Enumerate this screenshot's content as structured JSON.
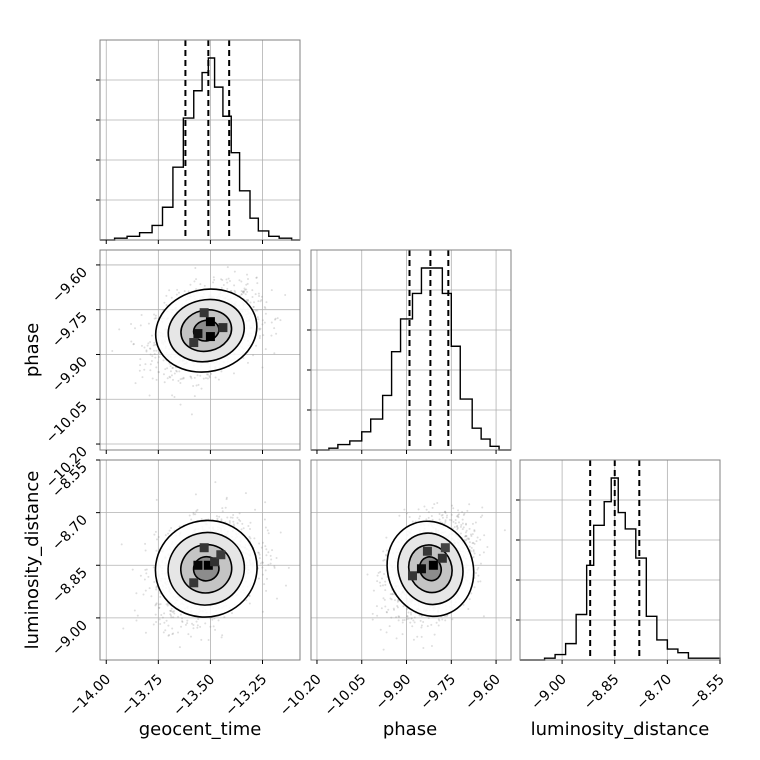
{
  "chart_data": {
    "type": "corner",
    "parameters": [
      "geocent_time",
      "phase",
      "luminosity_distance"
    ],
    "quantiles": [
      0.16,
      0.5,
      0.84
    ],
    "grid": true,
    "colors": {
      "line": "#000000",
      "grid": "#b0b0b0",
      "scatter": "#888888"
    },
    "panels": {
      "geocent_time": {
        "range": [
          -14.03,
          -13.07
        ],
        "ticks": [
          -14.0,
          -13.75,
          -13.5,
          -13.25
        ],
        "tick_labels": [
          "−14.00",
          "−13.75",
          "−13.50",
          "−13.25"
        ],
        "quantile_values": [
          -13.62,
          -13.51,
          -13.41
        ],
        "histogram": [
          {
            "x0": -14.03,
            "x1": -13.96,
            "count": 0
          },
          {
            "x0": -13.96,
            "x1": -13.9,
            "count": 1
          },
          {
            "x0": -13.9,
            "x1": -13.84,
            "count": 2
          },
          {
            "x0": -13.84,
            "x1": -13.78,
            "count": 4
          },
          {
            "x0": -13.78,
            "x1": -13.73,
            "count": 8
          },
          {
            "x0": -13.73,
            "x1": -13.68,
            "count": 18
          },
          {
            "x0": -13.68,
            "x1": -13.63,
            "count": 40
          },
          {
            "x0": -13.63,
            "x1": -13.58,
            "count": 67
          },
          {
            "x0": -13.58,
            "x1": -13.54,
            "count": 82
          },
          {
            "x0": -13.54,
            "x1": -13.51,
            "count": 92
          },
          {
            "x0": -13.51,
            "x1": -13.48,
            "count": 100
          },
          {
            "x0": -13.48,
            "x1": -13.44,
            "count": 84
          },
          {
            "x0": -13.44,
            "x1": -13.4,
            "count": 68
          },
          {
            "x0": -13.4,
            "x1": -13.36,
            "count": 48
          },
          {
            "x0": -13.36,
            "x1": -13.31,
            "count": 27
          },
          {
            "x0": -13.31,
            "x1": -13.27,
            "count": 12
          },
          {
            "x0": -13.27,
            "x1": -13.22,
            "count": 5
          },
          {
            "x0": -13.22,
            "x1": -13.17,
            "count": 2
          },
          {
            "x0": -13.17,
            "x1": -13.11,
            "count": 1
          },
          {
            "x0": -13.11,
            "x1": -13.07,
            "count": 0
          }
        ]
      },
      "phase": {
        "range": [
          -10.22,
          -9.55
        ],
        "ticks": [
          -10.2,
          -10.05,
          -9.9,
          -9.75,
          -9.6
        ],
        "tick_labels": [
          "−10.20",
          "−10.05",
          "−9.90",
          "−9.75",
          "−9.60"
        ],
        "quantile_values": [
          -9.89,
          -9.82,
          -9.76
        ],
        "histogram": [
          {
            "x0": -10.22,
            "x1": -10.16,
            "count": 0
          },
          {
            "x0": -10.16,
            "x1": -10.13,
            "count": 1
          },
          {
            "x0": -10.13,
            "x1": -10.09,
            "count": 3
          },
          {
            "x0": -10.09,
            "x1": -10.05,
            "count": 5
          },
          {
            "x0": -10.05,
            "x1": -10.02,
            "count": 10
          },
          {
            "x0": -10.02,
            "x1": -9.98,
            "count": 17
          },
          {
            "x0": -9.98,
            "x1": -9.95,
            "count": 30
          },
          {
            "x0": -9.95,
            "x1": -9.92,
            "count": 54
          },
          {
            "x0": -9.92,
            "x1": -9.88,
            "count": 72
          },
          {
            "x0": -9.88,
            "x1": -9.85,
            "count": 86
          },
          {
            "x0": -9.85,
            "x1": -9.82,
            "count": 100
          },
          {
            "x0": -9.82,
            "x1": -9.78,
            "count": 100
          },
          {
            "x0": -9.78,
            "x1": -9.75,
            "count": 86
          },
          {
            "x0": -9.75,
            "x1": -9.72,
            "count": 57
          },
          {
            "x0": -9.72,
            "x1": -9.68,
            "count": 28
          },
          {
            "x0": -9.68,
            "x1": -9.65,
            "count": 12
          },
          {
            "x0": -9.65,
            "x1": -9.62,
            "count": 6
          },
          {
            "x0": -9.62,
            "x1": -9.59,
            "count": 2
          },
          {
            "x0": -9.59,
            "x1": -9.55,
            "count": 0
          }
        ]
      },
      "luminosity_distance": {
        "range": [
          -9.12,
          -8.55
        ],
        "ticks": [
          -9.0,
          -8.85,
          -8.7,
          -8.55
        ],
        "tick_labels": [
          "−9.00",
          "−8.85",
          "−8.70",
          "−8.55"
        ],
        "quantile_values": [
          -8.92,
          -8.85,
          -8.78
        ],
        "histogram": [
          {
            "x0": -9.12,
            "x1": -9.05,
            "count": 0
          },
          {
            "x0": -9.05,
            "x1": -9.02,
            "count": 1
          },
          {
            "x0": -9.02,
            "x1": -8.99,
            "count": 3
          },
          {
            "x0": -8.99,
            "x1": -8.96,
            "count": 9
          },
          {
            "x0": -8.96,
            "x1": -8.93,
            "count": 25
          },
          {
            "x0": -8.93,
            "x1": -8.91,
            "count": 52
          },
          {
            "x0": -8.91,
            "x1": -8.88,
            "count": 74
          },
          {
            "x0": -8.88,
            "x1": -8.86,
            "count": 87
          },
          {
            "x0": -8.86,
            "x1": -8.84,
            "count": 100
          },
          {
            "x0": -8.84,
            "x1": -8.82,
            "count": 81
          },
          {
            "x0": -8.82,
            "x1": -8.79,
            "count": 72
          },
          {
            "x0": -8.79,
            "x1": -8.76,
            "count": 56
          },
          {
            "x0": -8.76,
            "x1": -8.73,
            "count": 24
          },
          {
            "x0": -8.73,
            "x1": -8.7,
            "count": 11
          },
          {
            "x0": -8.7,
            "x1": -8.67,
            "count": 6
          },
          {
            "x0": -8.67,
            "x1": -8.64,
            "count": 4
          },
          {
            "x0": -8.64,
            "x1": -8.55,
            "count": 1
          }
        ]
      }
    },
    "pairs": [
      {
        "x": "geocent_time",
        "y": "phase",
        "mean": [
          -13.52,
          -9.82
        ],
        "std": [
          0.12,
          0.07
        ],
        "corr": 0.3,
        "peak_bins": [
          [
            -13.5,
            -9.79,
            1.0
          ],
          [
            -13.5,
            -9.84,
            1.0
          ],
          [
            -13.56,
            -9.83,
            0.85
          ],
          [
            -13.44,
            -9.81,
            0.6
          ],
          [
            -13.53,
            -9.76,
            0.55
          ],
          [
            -13.58,
            -9.86,
            0.55
          ]
        ]
      },
      {
        "x": "geocent_time",
        "y": "luminosity_distance",
        "mean": [
          -13.52,
          -8.86
        ],
        "std": [
          0.12,
          0.07
        ],
        "corr": 0.3,
        "peak_bins": [
          [
            -13.51,
            -8.85,
            1.0
          ],
          [
            -13.56,
            -8.85,
            0.95
          ],
          [
            -13.48,
            -8.84,
            0.6
          ],
          [
            -13.53,
            -8.8,
            0.55
          ],
          [
            -13.58,
            -8.9,
            0.55
          ],
          [
            -13.45,
            -8.82,
            0.5
          ]
        ]
      },
      {
        "x": "phase",
        "y": "luminosity_distance",
        "mean": [
          -9.82,
          -8.86
        ],
        "std": [
          0.07,
          0.07
        ],
        "corr": 0.35,
        "peak_bins": [
          [
            -9.81,
            -8.85,
            1.0
          ],
          [
            -9.85,
            -8.86,
            0.9
          ],
          [
            -9.78,
            -8.83,
            0.6
          ],
          [
            -9.83,
            -8.81,
            0.55
          ],
          [
            -9.88,
            -8.88,
            0.55
          ],
          [
            -9.77,
            -8.8,
            0.45
          ]
        ]
      }
    ]
  }
}
